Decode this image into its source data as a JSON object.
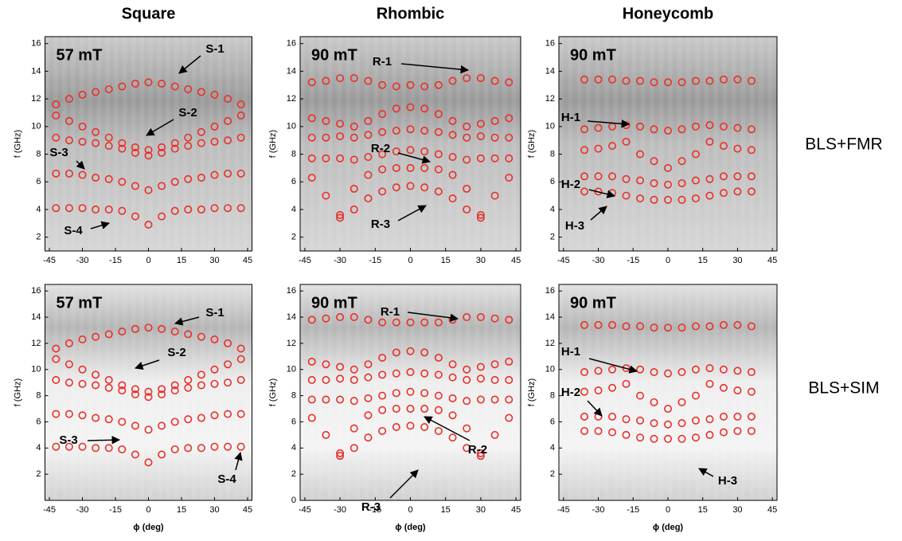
{
  "row_labels": [
    "BLS+FMR",
    "BLS+SIM"
  ],
  "chart_data": [
    {
      "type": "scatter",
      "title": "Square",
      "field": "57 mT",
      "ylabel": "f (GHz)",
      "annotations": [
        "S-1",
        "S-2",
        "S-3",
        "S-4"
      ],
      "xlim": [
        -47,
        47
      ],
      "ylim": [
        1,
        16.5
      ],
      "xticks": [
        -45,
        -30,
        -15,
        0,
        15,
        30,
        45
      ],
      "yticks": [
        2,
        4,
        6,
        8,
        10,
        12,
        14,
        16
      ],
      "x": [
        -42,
        -36,
        -30,
        -24,
        -18,
        -12,
        -6,
        0,
        6,
        12,
        18,
        24,
        30,
        36,
        42
      ],
      "series": [
        {
          "color": "#e8302a",
          "values": [
            11.6,
            12.0,
            12.3,
            12.5,
            12.7,
            12.9,
            13.1,
            13.2,
            13.1,
            12.9,
            12.7,
            12.5,
            12.3,
            12.0,
            11.6
          ]
        },
        {
          "color": "#e8302a",
          "values": [
            10.8,
            10.4,
            10.0,
            9.6,
            9.2,
            8.8,
            8.5,
            8.3,
            8.5,
            8.8,
            9.2,
            9.6,
            10.0,
            10.4,
            10.8
          ]
        },
        {
          "color": "#e8302a",
          "values": [
            9.2,
            9.0,
            8.9,
            8.8,
            8.6,
            8.4,
            8.1,
            7.9,
            8.1,
            8.4,
            8.6,
            8.8,
            8.9,
            9.0,
            9.2
          ]
        },
        {
          "color": "#e8302a",
          "values": [
            6.6,
            6.6,
            6.5,
            6.3,
            6.2,
            6.0,
            5.7,
            5.4,
            5.7,
            6.0,
            6.2,
            6.3,
            6.5,
            6.6,
            6.6
          ]
        },
        {
          "color": "#e8302a",
          "values": [
            4.1,
            4.1,
            4.1,
            4.0,
            4.0,
            3.9,
            3.5,
            2.9,
            3.5,
            3.9,
            4.0,
            4.0,
            4.1,
            4.1,
            4.1
          ]
        }
      ]
    },
    {
      "type": "scatter",
      "title": "Rhombic",
      "field": "90 mT",
      "ylabel": "f (GHz)",
      "annotations": [
        "R-1",
        "R-2",
        "R-3"
      ],
      "xlim": [
        -47,
        47
      ],
      "ylim": [
        1,
        16.5
      ],
      "xticks": [
        -45,
        -30,
        -15,
        0,
        15,
        30,
        45
      ],
      "yticks": [
        2,
        4,
        6,
        8,
        10,
        12,
        14,
        16
      ],
      "x": [
        -42,
        -36,
        -30,
        -24,
        -18,
        -12,
        -6,
        0,
        6,
        12,
        18,
        24,
        30,
        36,
        42
      ],
      "series": [
        {
          "color": "#e8302a",
          "values": [
            13.2,
            13.3,
            13.5,
            13.5,
            13.3,
            13.0,
            12.9,
            13.0,
            12.9,
            13.0,
            13.3,
            13.5,
            13.5,
            13.3,
            13.2
          ]
        },
        {
          "color": "#e8302a",
          "values": [
            10.6,
            10.4,
            10.2,
            10.0,
            10.4,
            10.9,
            11.3,
            11.4,
            11.3,
            10.9,
            10.4,
            10.0,
            10.2,
            10.4,
            10.6
          ]
        },
        {
          "color": "#e8302a",
          "values": [
            9.2,
            9.2,
            9.3,
            9.2,
            9.4,
            9.6,
            9.7,
            9.8,
            9.7,
            9.6,
            9.4,
            9.2,
            9.3,
            9.2,
            9.2
          ]
        },
        {
          "color": "#e8302a",
          "values": [
            7.7,
            7.7,
            7.7,
            7.6,
            7.8,
            8.0,
            8.2,
            8.3,
            8.2,
            8.0,
            7.8,
            7.6,
            7.7,
            7.7,
            7.7
          ]
        },
        {
          "color": "#e8302a",
          "values": [
            6.3,
            5.0,
            3.6,
            5.5,
            6.5,
            6.9,
            7.0,
            7.0,
            7.0,
            6.9,
            6.5,
            5.5,
            3.6,
            5.0,
            6.3
          ]
        },
        {
          "color": "#e8302a",
          "values": [
            null,
            null,
            3.4,
            4.0,
            4.8,
            5.3,
            5.6,
            5.7,
            5.6,
            5.3,
            4.8,
            4.0,
            3.4,
            null,
            null
          ]
        }
      ]
    },
    {
      "type": "scatter",
      "title": "Honeycomb",
      "field": "90 mT",
      "ylabel": "f (GHz)",
      "annotations": [
        "H-1",
        "H-2",
        "H-3"
      ],
      "xlim": [
        -47,
        47
      ],
      "ylim": [
        1,
        16.5
      ],
      "xticks": [
        -45,
        -30,
        -15,
        0,
        15,
        30,
        45
      ],
      "yticks": [
        2,
        4,
        6,
        8,
        10,
        12,
        14,
        16
      ],
      "x": [
        -42,
        -36,
        -30,
        -24,
        -18,
        -12,
        -6,
        0,
        6,
        12,
        18,
        24,
        30,
        36,
        42
      ],
      "series": [
        {
          "color": "#e8302a",
          "values": [
            null,
            13.4,
            13.4,
            13.4,
            13.3,
            13.3,
            13.2,
            13.2,
            13.2,
            13.3,
            13.3,
            13.4,
            13.4,
            13.3,
            null
          ]
        },
        {
          "color": "#e8302a",
          "values": [
            null,
            9.8,
            9.9,
            10.0,
            10.1,
            10.0,
            9.8,
            9.7,
            9.8,
            10.0,
            10.1,
            10.0,
            9.9,
            9.8,
            null
          ]
        },
        {
          "color": "#e8302a",
          "values": [
            null,
            8.3,
            8.4,
            8.6,
            8.9,
            8.0,
            7.5,
            7.0,
            7.5,
            8.0,
            8.9,
            8.6,
            8.4,
            8.3,
            null
          ]
        },
        {
          "color": "#e8302a",
          "values": [
            null,
            6.4,
            6.4,
            6.4,
            6.2,
            6.1,
            5.9,
            5.8,
            5.9,
            6.1,
            6.2,
            6.4,
            6.4,
            6.4,
            null
          ]
        },
        {
          "color": "#e8302a",
          "values": [
            null,
            5.3,
            5.3,
            5.2,
            5.0,
            4.8,
            4.7,
            4.7,
            4.7,
            4.8,
            5.0,
            5.2,
            5.3,
            5.3,
            null
          ]
        }
      ]
    },
    {
      "type": "scatter",
      "field": "57 mT",
      "ylabel": "f (GHz)",
      "xlabel": "ϕ (deg)",
      "annotations": [
        "S-1",
        "S-2",
        "S-3",
        "S-4"
      ],
      "xlim": [
        -47,
        47
      ],
      "ylim": [
        0,
        16.5
      ],
      "xticks": [
        -45,
        -30,
        -15,
        0,
        15,
        30,
        45
      ],
      "yticks": [
        2,
        4,
        6,
        8,
        10,
        12,
        14,
        16
      ],
      "x": [
        -42,
        -36,
        -30,
        -24,
        -18,
        -12,
        -6,
        0,
        6,
        12,
        18,
        24,
        30,
        36,
        42
      ],
      "series": [
        {
          "color": "#e8302a",
          "values": [
            11.6,
            12.0,
            12.3,
            12.5,
            12.7,
            12.9,
            13.1,
            13.2,
            13.1,
            12.9,
            12.7,
            12.5,
            12.3,
            12.0,
            11.6
          ]
        },
        {
          "color": "#e8302a",
          "values": [
            10.8,
            10.4,
            10.0,
            9.6,
            9.2,
            8.8,
            8.5,
            8.3,
            8.5,
            8.8,
            9.2,
            9.6,
            10.0,
            10.4,
            10.8
          ]
        },
        {
          "color": "#e8302a",
          "values": [
            9.2,
            9.0,
            8.9,
            8.8,
            8.6,
            8.4,
            8.1,
            7.9,
            8.1,
            8.4,
            8.6,
            8.8,
            8.9,
            9.0,
            9.2
          ]
        },
        {
          "color": "#e8302a",
          "values": [
            6.6,
            6.6,
            6.5,
            6.3,
            6.2,
            6.0,
            5.7,
            5.4,
            5.7,
            6.0,
            6.2,
            6.3,
            6.5,
            6.6,
            6.6
          ]
        },
        {
          "color": "#e8302a",
          "values": [
            4.1,
            4.1,
            4.1,
            4.0,
            4.0,
            3.9,
            3.5,
            2.9,
            3.5,
            3.9,
            4.0,
            4.0,
            4.1,
            4.1,
            4.1
          ]
        }
      ]
    },
    {
      "type": "scatter",
      "field": "90 mT",
      "ylabel": "f (GHz)",
      "xlabel": "ϕ (deg)",
      "annotations": [
        "R-1",
        "R-2",
        "R-3"
      ],
      "xlim": [
        -47,
        47
      ],
      "ylim": [
        0,
        16.5
      ],
      "xticks": [
        -45,
        -30,
        -15,
        0,
        15,
        30,
        45
      ],
      "yticks": [
        0,
        2,
        4,
        6,
        8,
        10,
        12,
        14,
        16
      ],
      "x": [
        -42,
        -36,
        -30,
        -24,
        -18,
        -12,
        -6,
        0,
        6,
        12,
        18,
        24,
        30,
        36,
        42
      ],
      "series": [
        {
          "color": "#e8302a",
          "values": [
            13.8,
            13.9,
            14.0,
            14.0,
            13.8,
            13.6,
            13.6,
            13.6,
            13.6,
            13.6,
            13.8,
            14.0,
            14.0,
            13.9,
            13.8
          ]
        },
        {
          "color": "#e8302a",
          "values": [
            10.6,
            10.4,
            10.2,
            10.0,
            10.4,
            10.9,
            11.3,
            11.4,
            11.3,
            10.9,
            10.4,
            10.0,
            10.2,
            10.4,
            10.6
          ]
        },
        {
          "color": "#e8302a",
          "values": [
            9.2,
            9.2,
            9.3,
            9.2,
            9.4,
            9.6,
            9.7,
            9.8,
            9.7,
            9.6,
            9.4,
            9.2,
            9.3,
            9.2,
            9.2
          ]
        },
        {
          "color": "#e8302a",
          "values": [
            7.7,
            7.7,
            7.7,
            7.6,
            7.8,
            8.0,
            8.2,
            8.3,
            8.2,
            8.0,
            7.8,
            7.6,
            7.7,
            7.7,
            7.7
          ]
        },
        {
          "color": "#e8302a",
          "values": [
            6.3,
            5.0,
            3.6,
            5.5,
            6.5,
            6.9,
            7.0,
            7.0,
            7.0,
            6.9,
            6.5,
            5.5,
            3.6,
            5.0,
            6.3
          ]
        },
        {
          "color": "#e8302a",
          "values": [
            null,
            null,
            3.4,
            4.0,
            4.8,
            5.3,
            5.6,
            5.7,
            5.6,
            5.3,
            4.8,
            4.0,
            3.4,
            null,
            null
          ]
        }
      ]
    },
    {
      "type": "scatter",
      "field": "90 mT",
      "ylabel": "f (GHz)",
      "xlabel": "ϕ (deg)",
      "annotations": [
        "H-1",
        "H-2",
        "H-3"
      ],
      "xlim": [
        -47,
        47
      ],
      "ylim": [
        0,
        16.5
      ],
      "xticks": [
        -45,
        -30,
        -15,
        0,
        15,
        30,
        45
      ],
      "yticks": [
        2,
        4,
        6,
        8,
        10,
        12,
        14,
        16
      ],
      "x": [
        -42,
        -36,
        -30,
        -24,
        -18,
        -12,
        -6,
        0,
        6,
        12,
        18,
        24,
        30,
        36,
        42
      ],
      "series": [
        {
          "color": "#e8302a",
          "values": [
            null,
            13.4,
            13.4,
            13.4,
            13.3,
            13.3,
            13.2,
            13.2,
            13.2,
            13.3,
            13.3,
            13.4,
            13.4,
            13.3,
            null
          ]
        },
        {
          "color": "#e8302a",
          "values": [
            null,
            9.8,
            9.9,
            10.0,
            10.1,
            10.0,
            9.8,
            9.7,
            9.8,
            10.0,
            10.1,
            10.0,
            9.9,
            9.8,
            null
          ]
        },
        {
          "color": "#e8302a",
          "values": [
            null,
            8.3,
            8.4,
            8.6,
            8.9,
            8.0,
            7.5,
            7.0,
            7.5,
            8.0,
            8.9,
            8.6,
            8.4,
            8.3,
            null
          ]
        },
        {
          "color": "#e8302a",
          "values": [
            null,
            6.4,
            6.4,
            6.4,
            6.2,
            6.1,
            5.9,
            5.8,
            5.9,
            6.1,
            6.2,
            6.4,
            6.4,
            6.4,
            null
          ]
        },
        {
          "color": "#e8302a",
          "values": [
            null,
            5.3,
            5.3,
            5.2,
            5.0,
            4.8,
            4.7,
            4.7,
            4.7,
            4.8,
            5.0,
            5.2,
            5.3,
            5.3,
            null
          ]
        }
      ]
    }
  ]
}
